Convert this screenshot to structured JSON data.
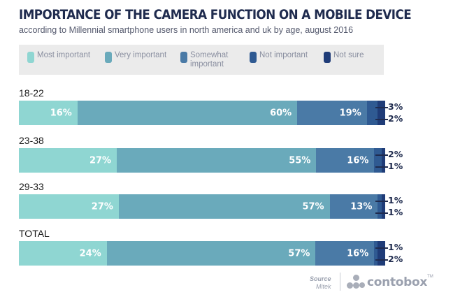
{
  "title": "IMPORTANCE OF THE CAMERA FUNCTION ON A MOBILE DEVICE",
  "subtitle": "according to Millennial smartphone users in north america and uk by age, august 2016",
  "legend": [
    {
      "label": "Most important",
      "color": "#8fd6d2"
    },
    {
      "label": "Very important",
      "color": "#6aaabb"
    },
    {
      "label": "Somewhat important",
      "color": "#4a7aa6"
    },
    {
      "label": "Not important",
      "color": "#2f5a92"
    },
    {
      "label": "Not sure",
      "color": "#1f3c78"
    }
  ],
  "chart_data": {
    "type": "bar",
    "orientation": "horizontal",
    "stacked": true,
    "title": "IMPORTANCE OF THE CAMERA FUNCTION ON A MOBILE DEVICE",
    "subtitle": "according to Millennial smartphone users in north america and uk by age, august 2016",
    "categories": [
      "18-22",
      "23-38",
      "29-33",
      "TOTAL"
    ],
    "series": [
      {
        "name": "Most important",
        "values": [
          16,
          27,
          27,
          24
        ]
      },
      {
        "name": "Very important",
        "values": [
          60,
          55,
          57,
          57
        ]
      },
      {
        "name": "Somewhat important",
        "values": [
          19,
          16,
          13,
          16
        ]
      },
      {
        "name": "Not important",
        "values": [
          3,
          2,
          1,
          1
        ]
      },
      {
        "name": "Not sure",
        "values": [
          2,
          1,
          1,
          2
        ]
      }
    ],
    "value_suffix": "%",
    "legend_position": "top",
    "grid": false
  },
  "source": {
    "label": "Source",
    "value": "Mitek"
  },
  "logo": {
    "text": "contobox",
    "tm": "TM"
  }
}
